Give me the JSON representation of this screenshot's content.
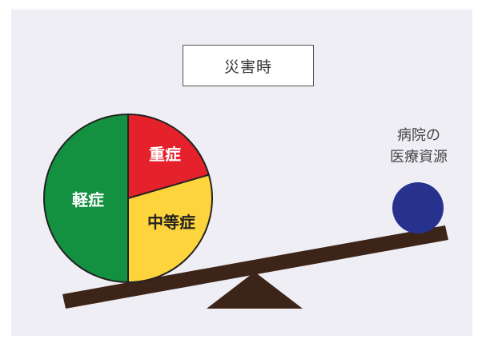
{
  "title": "災害時",
  "hospital_label": [
    "病院の",
    "医療資源"
  ],
  "segments": [
    {
      "label": "軽症",
      "color": "#139040"
    },
    {
      "label": "重症",
      "color": "#e5212b"
    },
    {
      "label": "中等症",
      "color": "#fdd43c"
    }
  ],
  "colors": {
    "background": "#eeeef4",
    "beam": "#3d2418",
    "fulcrum": "#3d2418",
    "resource_ball": "#27328f",
    "outline": "#222222"
  }
}
